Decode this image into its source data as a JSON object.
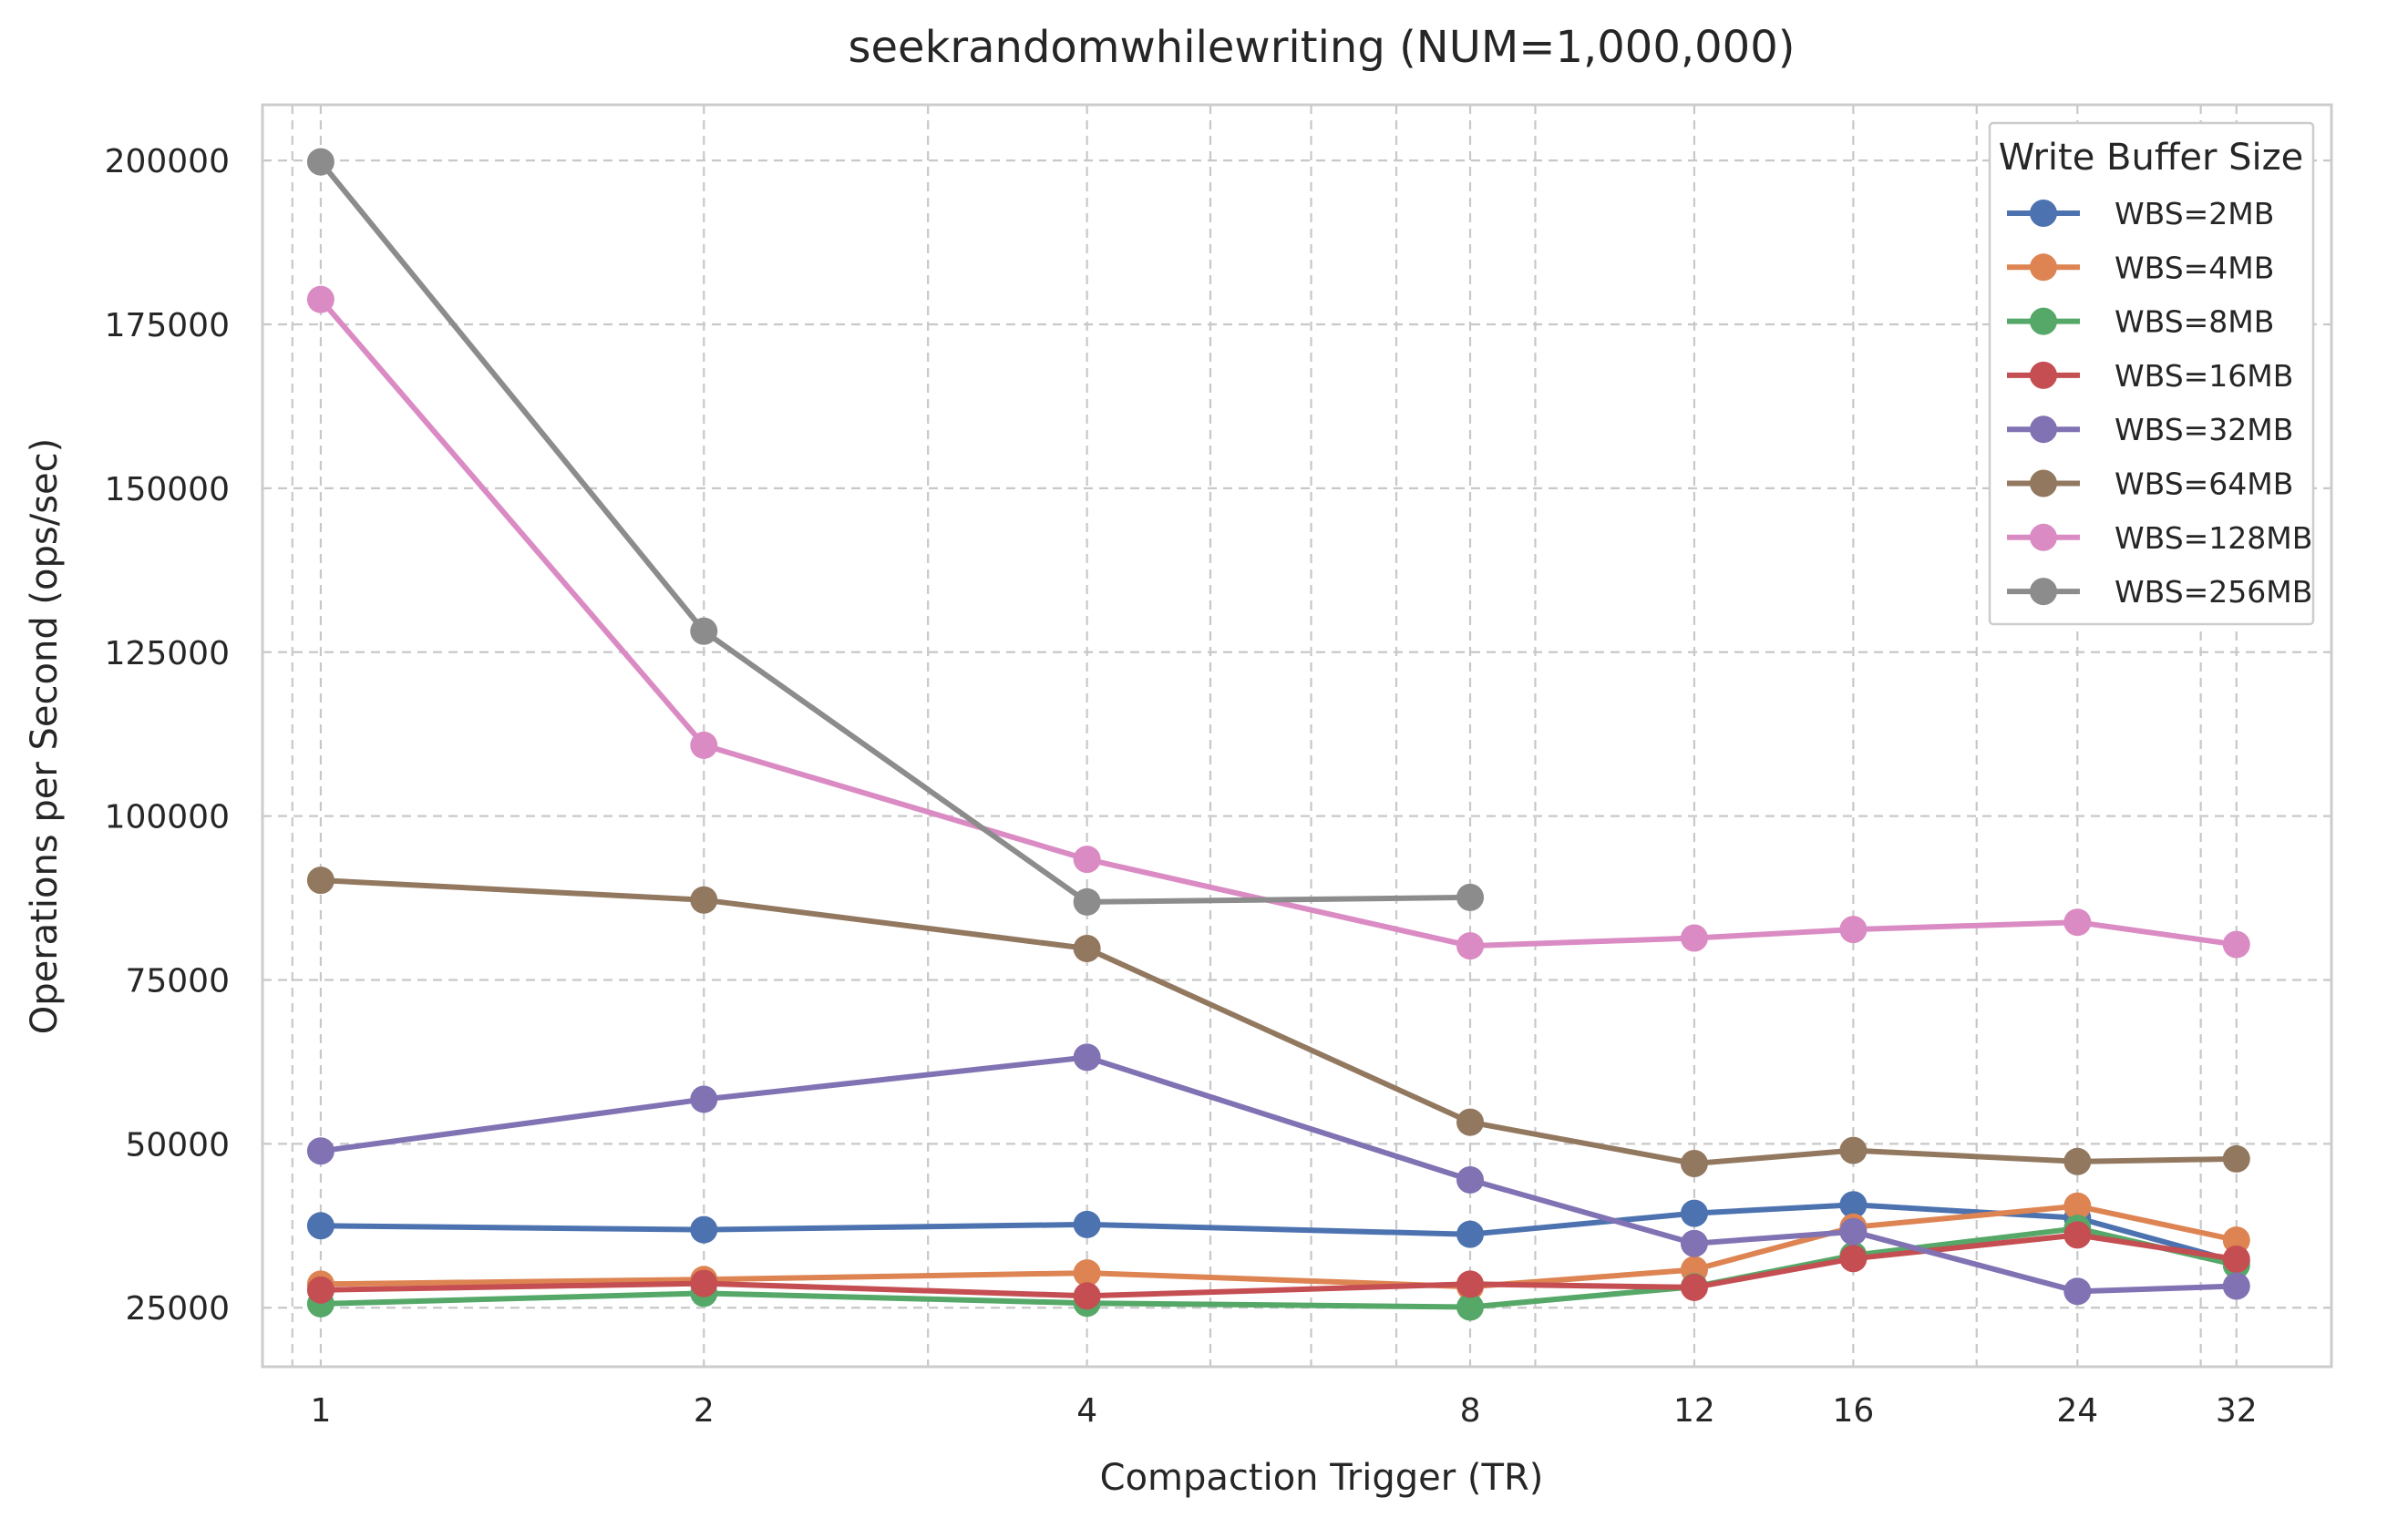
{
  "chart_data": {
    "type": "line",
    "title": "seekrandomwhilewriting (NUM=1,000,000)",
    "xlabel": "Compaction Trigger (TR)",
    "ylabel": "Operations per Second (ops/sec)",
    "x_scale": "log2",
    "x": [
      1,
      2,
      4,
      8,
      12,
      16,
      24,
      32
    ],
    "x_tick_labels": [
      "1",
      "2",
      "4",
      "8",
      "12",
      "16",
      "24",
      "32"
    ],
    "xlim": [
      0.9,
      38
    ],
    "y_ticks": [
      25000,
      50000,
      75000,
      100000,
      125000,
      150000,
      175000,
      200000
    ],
    "y_tick_labels": [
      "25000",
      "50000",
      "75000",
      "100000",
      "125000",
      "150000",
      "175000",
      "200000"
    ],
    "ylim": [
      16000,
      208500
    ],
    "grid": true,
    "legend": {
      "title": "Write Buffer Size",
      "placement": "top-right"
    },
    "series": [
      {
        "name": "WBS=2MB",
        "color": "#4c72b0",
        "values": [
          37500,
          36900,
          37700,
          36200,
          39400,
          40700,
          38700,
          32000
        ]
      },
      {
        "name": "WBS=4MB",
        "color": "#dd8452",
        "values": [
          28600,
          29300,
          30300,
          28200,
          30800,
          37300,
          40500,
          35300
        ]
      },
      {
        "name": "WBS=8MB",
        "color": "#55a868",
        "values": [
          25600,
          27200,
          25700,
          25100,
          28200,
          33000,
          37100,
          31500
        ]
      },
      {
        "name": "WBS=16MB",
        "color": "#c44e52",
        "values": [
          27700,
          28700,
          26800,
          28600,
          28100,
          32500,
          36100,
          32400
        ]
      },
      {
        "name": "WBS=32MB",
        "color": "#8172b3",
        "values": [
          48900,
          56800,
          63200,
          44500,
          34800,
          36600,
          27500,
          28300
        ]
      },
      {
        "name": "WBS=64MB",
        "color": "#937860",
        "values": [
          90200,
          87200,
          79800,
          53300,
          47000,
          49000,
          47300,
          47700
        ]
      },
      {
        "name": "WBS=128MB",
        "color": "#da8bc3",
        "values": [
          178800,
          110800,
          93400,
          80200,
          81400,
          82700,
          83800,
          80400
        ]
      },
      {
        "name": "WBS=256MB",
        "color": "#8c8c8c",
        "values": [
          199800,
          128200,
          86900,
          87600,
          null,
          null,
          null,
          null
        ]
      }
    ]
  }
}
